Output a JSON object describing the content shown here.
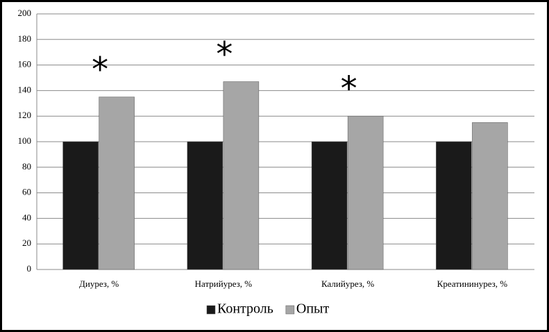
{
  "chart_data": {
    "type": "bar",
    "categories": [
      "Диурез, %",
      "Натрийурез, %",
      "Калийурез, %",
      "Креатининурез, %"
    ],
    "series": [
      {
        "name": "Контроль",
        "color": "#1a1a1a",
        "values": [
          100,
          100,
          100,
          100
        ]
      },
      {
        "name": "Опыт",
        "color": "#a6a6a6",
        "values": [
          135,
          147,
          120,
          115
        ]
      }
    ],
    "markers": [
      "*",
      "*",
      "*",
      null
    ],
    "ylim": [
      0,
      200
    ],
    "yticks": [
      0,
      20,
      40,
      60,
      80,
      100,
      120,
      140,
      160,
      180,
      200
    ],
    "grid": true,
    "legend": "bottom"
  }
}
